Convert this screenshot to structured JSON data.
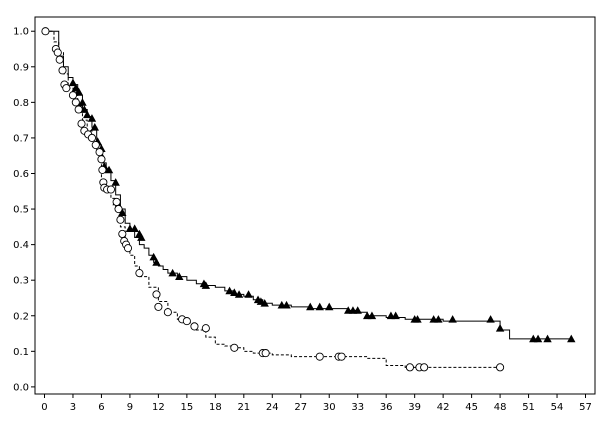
{
  "chart_data": {
    "type": "line",
    "title": "",
    "xlabel": "",
    "ylabel": "",
    "xlim": [
      -1,
      58
    ],
    "ylim": [
      -0.02,
      1.04
    ],
    "x_ticks": [
      0,
      3,
      6,
      9,
      12,
      15,
      18,
      21,
      24,
      27,
      30,
      33,
      36,
      39,
      42,
      45,
      48,
      51,
      54,
      57
    ],
    "y_ticks": [
      "0.0",
      "0.1",
      "0.2",
      "0.3",
      "0.4",
      "0.5",
      "0.6",
      "0.7",
      "0.8",
      "0.9",
      "1.0"
    ],
    "grid": false,
    "legend": "none",
    "series": [
      {
        "line_style": "solid",
        "marker": "filled-triangle",
        "color": "#000000",
        "x": [
          0,
          1.5,
          2.0,
          2.5,
          3.0,
          3.5,
          4.0,
          4.5,
          5.0,
          5.5,
          6.0,
          6.5,
          7.0,
          7.5,
          8.0,
          8.5,
          9.0,
          9.5,
          10.0,
          10.5,
          11.0,
          11.5,
          12.0,
          12.5,
          13.0,
          14.0,
          15.0,
          16.0,
          17.0,
          18.0,
          19.0,
          20.0,
          21.0,
          22.0,
          23.0,
          24.0,
          26.0,
          28.0,
          30.0,
          32.0,
          33.0,
          34.0,
          36.0,
          38.0,
          40.0,
          42.0,
          44.0,
          46.0,
          47.5,
          48.0,
          49.0,
          52.0,
          55.5
        ],
        "y": [
          1.0,
          0.93,
          0.9,
          0.87,
          0.85,
          0.82,
          0.78,
          0.76,
          0.73,
          0.68,
          0.63,
          0.61,
          0.58,
          0.54,
          0.5,
          0.46,
          0.44,
          0.42,
          0.4,
          0.39,
          0.37,
          0.35,
          0.34,
          0.33,
          0.32,
          0.31,
          0.3,
          0.29,
          0.285,
          0.28,
          0.27,
          0.26,
          0.255,
          0.245,
          0.235,
          0.23,
          0.225,
          0.22,
          0.22,
          0.215,
          0.21,
          0.2,
          0.195,
          0.19,
          0.19,
          0.185,
          0.185,
          0.185,
          0.185,
          0.16,
          0.135,
          0.135,
          0.135
        ],
        "censored": [
          [
            3.0,
            0.855
          ],
          [
            3.3,
            0.84
          ],
          [
            3.6,
            0.83
          ],
          [
            4.0,
            0.8
          ],
          [
            4.2,
            0.78
          ],
          [
            4.5,
            0.765
          ],
          [
            5.0,
            0.755
          ],
          [
            5.3,
            0.73
          ],
          [
            5.6,
            0.69
          ],
          [
            6.0,
            0.67
          ],
          [
            6.0,
            0.65
          ],
          [
            6.3,
            0.62
          ],
          [
            6.8,
            0.61
          ],
          [
            7.5,
            0.575
          ],
          [
            7.6,
            0.52
          ],
          [
            7.8,
            0.51
          ],
          [
            8.2,
            0.49
          ],
          [
            9.0,
            0.445
          ],
          [
            9.5,
            0.445
          ],
          [
            10.0,
            0.43
          ],
          [
            10.2,
            0.42
          ],
          [
            11.5,
            0.365
          ],
          [
            11.8,
            0.35
          ],
          [
            13.5,
            0.32
          ],
          [
            14.2,
            0.31
          ],
          [
            16.8,
            0.29
          ],
          [
            17.0,
            0.285
          ],
          [
            19.5,
            0.27
          ],
          [
            20.0,
            0.265
          ],
          [
            20.5,
            0.26
          ],
          [
            21.5,
            0.26
          ],
          [
            22.5,
            0.245
          ],
          [
            22.8,
            0.24
          ],
          [
            23.2,
            0.235
          ],
          [
            25.0,
            0.23
          ],
          [
            25.5,
            0.23
          ],
          [
            28.0,
            0.225
          ],
          [
            29.0,
            0.225
          ],
          [
            30.0,
            0.225
          ],
          [
            32.0,
            0.215
          ],
          [
            32.5,
            0.215
          ],
          [
            33.0,
            0.215
          ],
          [
            34.0,
            0.2
          ],
          [
            34.5,
            0.2
          ],
          [
            36.5,
            0.2
          ],
          [
            37.0,
            0.2
          ],
          [
            39.0,
            0.19
          ],
          [
            39.3,
            0.19
          ],
          [
            41.0,
            0.19
          ],
          [
            41.5,
            0.19
          ],
          [
            43.0,
            0.19
          ],
          [
            47.0,
            0.19
          ],
          [
            48.0,
            0.165
          ],
          [
            51.5,
            0.135
          ],
          [
            52.0,
            0.135
          ],
          [
            53.0,
            0.135
          ],
          [
            55.5,
            0.135
          ]
        ]
      },
      {
        "line_style": "dashed",
        "marker": "open-circle",
        "color": "#000000",
        "x": [
          0,
          1.0,
          1.5,
          2.0,
          2.5,
          3.0,
          3.5,
          4.0,
          4.5,
          5.0,
          5.5,
          6.0,
          6.5,
          7.0,
          7.5,
          8.0,
          8.5,
          9.0,
          9.5,
          10.0,
          11.0,
          12.0,
          13.0,
          14.0,
          15.0,
          16.0,
          17.0,
          18.0,
          19.0,
          20.0,
          21.0,
          22.0,
          24.0,
          26.0,
          28.0,
          30.0,
          32.0,
          34.0,
          36.0,
          38.0,
          40.0,
          48.0
        ],
        "y": [
          1.0,
          0.97,
          0.94,
          0.88,
          0.84,
          0.82,
          0.79,
          0.75,
          0.72,
          0.7,
          0.66,
          0.58,
          0.55,
          0.53,
          0.5,
          0.45,
          0.4,
          0.37,
          0.34,
          0.31,
          0.28,
          0.24,
          0.21,
          0.19,
          0.18,
          0.16,
          0.14,
          0.12,
          0.115,
          0.11,
          0.1,
          0.095,
          0.09,
          0.085,
          0.085,
          0.085,
          0.085,
          0.08,
          0.06,
          0.055,
          0.055,
          0.055
        ],
        "censored": [
          [
            0.1,
            1.0
          ],
          [
            1.2,
            0.95
          ],
          [
            1.4,
            0.94
          ],
          [
            1.6,
            0.92
          ],
          [
            1.9,
            0.89
          ],
          [
            2.1,
            0.85
          ],
          [
            2.3,
            0.84
          ],
          [
            3.0,
            0.82
          ],
          [
            3.3,
            0.8
          ],
          [
            3.6,
            0.78
          ],
          [
            3.9,
            0.74
          ],
          [
            4.2,
            0.72
          ],
          [
            4.6,
            0.71
          ],
          [
            5.0,
            0.7
          ],
          [
            5.4,
            0.68
          ],
          [
            5.8,
            0.66
          ],
          [
            6.0,
            0.64
          ],
          [
            6.1,
            0.61
          ],
          [
            6.2,
            0.575
          ],
          [
            6.3,
            0.56
          ],
          [
            6.6,
            0.555
          ],
          [
            7.0,
            0.555
          ],
          [
            7.6,
            0.52
          ],
          [
            7.8,
            0.5
          ],
          [
            8.0,
            0.47
          ],
          [
            8.2,
            0.43
          ],
          [
            8.4,
            0.41
          ],
          [
            8.6,
            0.4
          ],
          [
            8.8,
            0.39
          ],
          [
            10.0,
            0.32
          ],
          [
            11.8,
            0.26
          ],
          [
            12.0,
            0.225
          ],
          [
            13.0,
            0.21
          ],
          [
            14.5,
            0.19
          ],
          [
            15.0,
            0.185
          ],
          [
            15.8,
            0.17
          ],
          [
            17.0,
            0.165
          ],
          [
            20.0,
            0.11
          ],
          [
            23.0,
            0.095
          ],
          [
            23.3,
            0.095
          ],
          [
            29.0,
            0.085
          ],
          [
            31.0,
            0.085
          ],
          [
            31.3,
            0.085
          ],
          [
            38.5,
            0.055
          ],
          [
            39.5,
            0.055
          ],
          [
            40.0,
            0.055
          ],
          [
            48.0,
            0.055
          ]
        ]
      }
    ]
  }
}
